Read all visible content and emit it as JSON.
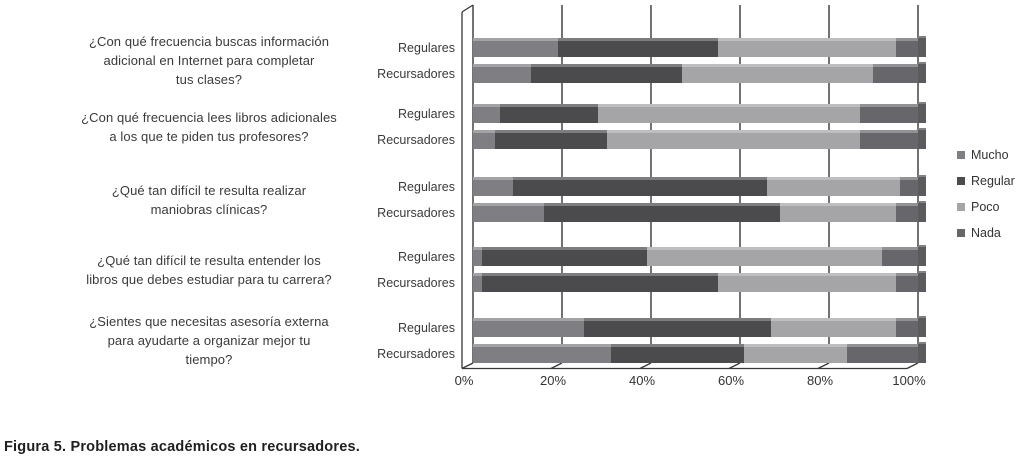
{
  "figure": {
    "caption": {
      "label": "Figura 5.",
      "text": " Problemas académicos en recursadores."
    }
  },
  "chart_data": {
    "type": "bar",
    "variant": "100%-stacked-horizontal-3d",
    "title": "",
    "xlabel": "",
    "ylabel": "",
    "x_ticks": [
      "0%",
      "20%",
      "40%",
      "60%",
      "80%",
      "100%"
    ],
    "xlim": [
      0,
      100
    ],
    "grid": true,
    "legend_position": "right",
    "series": [
      "Mucho",
      "Regular",
      "Poco",
      "Nada"
    ],
    "colors": {
      "Mucho": "#7f7f83",
      "Regular": "#4b4b4d",
      "Poco": "#a5a5a8",
      "Nada": "#67676b"
    },
    "groups": [
      {
        "question": "¿Con qué frecuencia buscas información adicional en Internet para completar tus clases?",
        "question_lines": [
          "¿Con qué frecuencia buscas información",
          "adicional en Internet para completar",
          "tus clases?"
        ],
        "rows": [
          {
            "label": "Regulares",
            "values": [
              19,
              36,
              40,
              5
            ]
          },
          {
            "label": "Recursadores",
            "values": [
              13,
              34,
              43,
              10
            ]
          }
        ]
      },
      {
        "question": "¿Con qué frecuencia lees libros adicionales a los que te piden tus profesores?",
        "question_lines": [
          "¿Con qué frecuencia lees libros adicionales",
          "a los que te piden tus profesores?"
        ],
        "rows": [
          {
            "label": "Regulares",
            "values": [
              6,
              22,
              59,
              13
            ]
          },
          {
            "label": "Recursadores",
            "values": [
              5,
              25,
              57,
              13
            ]
          }
        ]
      },
      {
        "question": "¿Qué tan difícil te resulta realizar maniobras clínicas?",
        "question_lines": [
          "¿Qué tan difícil te resulta realizar",
          "maniobras clínicas?"
        ],
        "rows": [
          {
            "label": "Regulares",
            "values": [
              9,
              57,
              30,
              4
            ]
          },
          {
            "label": "Recursadores",
            "values": [
              16,
              53,
              26,
              5
            ]
          }
        ]
      },
      {
        "question": "¿Qué tan difícil te resulta entender los libros que debes estudiar para tu carrera?",
        "question_lines": [
          "¿Qué tan difícil te resulta entender los",
          "libros que debes estudiar para tu carrera?"
        ],
        "rows": [
          {
            "label": "Regulares",
            "values": [
              2,
              37,
              53,
              8
            ]
          },
          {
            "label": "Recursadores",
            "values": [
              2,
              53,
              40,
              5
            ]
          }
        ]
      },
      {
        "question": "¿Sientes que necesitas asesoría externa para ayudarte a organizar mejor tu tiempo?",
        "question_lines": [
          "¿Sientes que necesitas asesoría externa",
          "para ayudarte a organizar mejor tu",
          "tiempo?"
        ],
        "rows": [
          {
            "label": "Regulares",
            "values": [
              25,
              42,
              28,
              5
            ]
          },
          {
            "label": "Recursadores",
            "values": [
              31,
              30,
              23,
              16
            ]
          }
        ]
      }
    ]
  }
}
